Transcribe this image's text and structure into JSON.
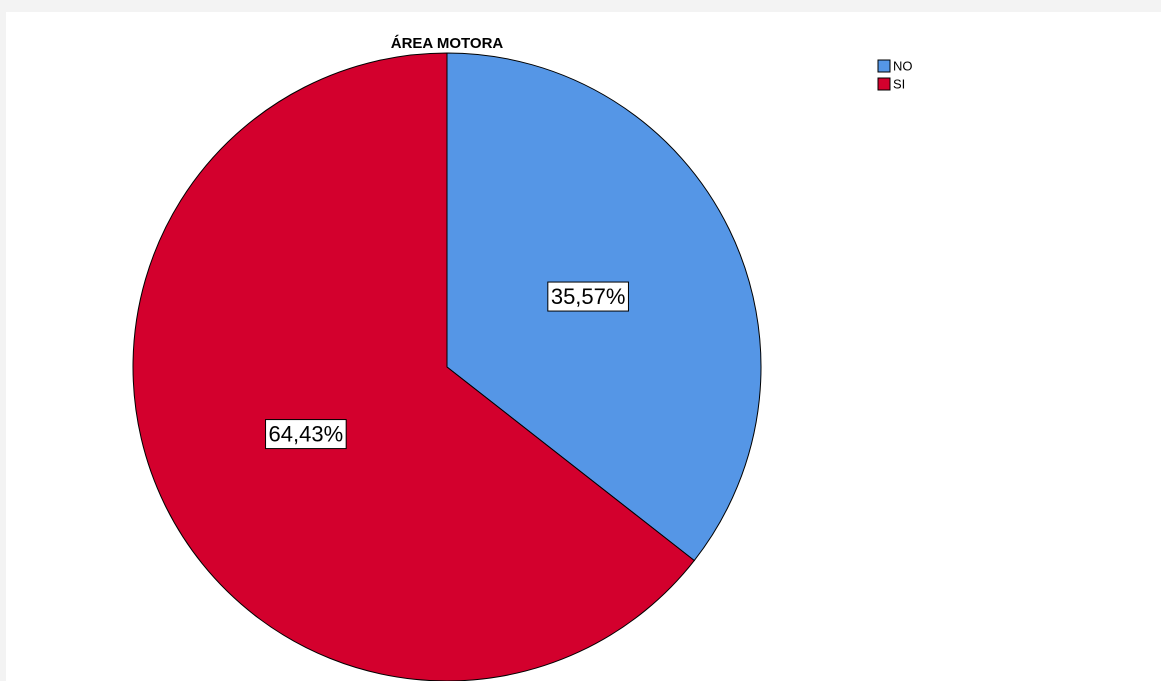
{
  "chart_data": {
    "type": "pie",
    "title": "ÁREA MOTORA",
    "categories": [
      "NO",
      "SI"
    ],
    "values": [
      35.57,
      64.43
    ],
    "value_labels": [
      "35,57%",
      "64,43%"
    ],
    "colors": [
      "#5596e6",
      "#d3002d"
    ],
    "legend": "top-right",
    "start_angle": 0,
    "direction": "clockwise"
  }
}
